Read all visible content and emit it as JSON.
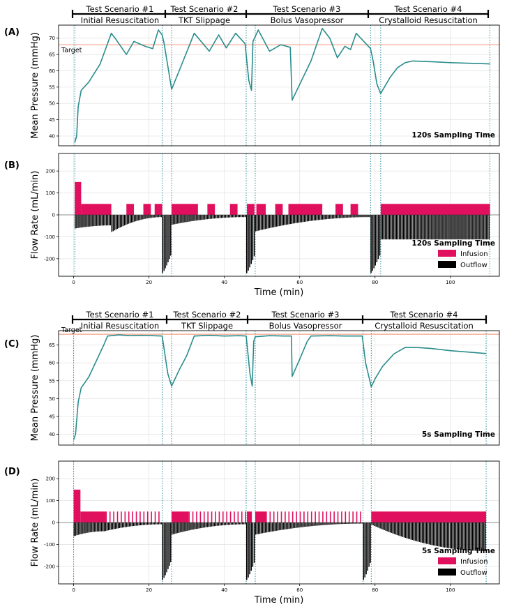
{
  "colors": {
    "pressure": "#2a8c8c",
    "target": "#f4a08a",
    "infusion": "#e0105e",
    "outflow": "#000000",
    "vline": "#2a8c9c",
    "grid": "#e4e4e4"
  },
  "top_figure": {
    "scenarios": [
      {
        "title": "Test Scenario #1",
        "subtitle": "Initial Resuscitation"
      },
      {
        "title": "Test Scenario #2",
        "subtitle": "TKT Slippage"
      },
      {
        "title": "Test Scenario #3",
        "subtitle": "Bolus Vasopressor"
      },
      {
        "title": "Test Scenario #4",
        "subtitle": "Crystalloid Resuscitation"
      }
    ]
  },
  "bottom_figure": {
    "scenarios": [
      {
        "title": "Test Scenario #1",
        "subtitle": "Initial Resuscitation"
      },
      {
        "title": "Test Scenario #2",
        "subtitle": "TKT Slippage"
      },
      {
        "title": "Test Scenario #3",
        "subtitle": "Bolus Vasopressor"
      },
      {
        "title": "Test Scenario #4",
        "subtitle": "Crystalloid Resuscitation"
      }
    ]
  },
  "chart_data": [
    {
      "panel": "(A)",
      "type": "line",
      "ylabel": "Mean Pressure (mmHg)",
      "annotation": "120s Sampling Time",
      "target_label": "Target",
      "target_value": 68,
      "xlim": [
        -4,
        113
      ],
      "ylim": [
        37,
        74
      ],
      "y_ticks": [
        40,
        45,
        50,
        55,
        60,
        65,
        70
      ],
      "event_lines_x": [
        0.3,
        23.5,
        26,
        45.8,
        48.2,
        78.8,
        81.5,
        110.5
      ],
      "series": [
        {
          "points": [
            [
              0.3,
              38
            ],
            [
              0.8,
              40
            ],
            [
              1.2,
              49
            ],
            [
              2,
              54
            ],
            [
              4,
              56.5
            ],
            [
              7,
              62
            ],
            [
              10,
              71.5
            ],
            [
              11,
              70
            ],
            [
              14,
              65
            ],
            [
              16,
              69
            ],
            [
              19,
              67.5
            ],
            [
              21,
              66.8
            ],
            [
              22.5,
              72.5
            ],
            [
              23.5,
              71
            ],
            [
              24,
              68.5
            ],
            [
              26,
              54.3
            ],
            [
              28,
              60
            ],
            [
              32,
              71.5
            ],
            [
              36,
              66
            ],
            [
              38.5,
              71
            ],
            [
              40.5,
              67
            ],
            [
              43,
              71.5
            ],
            [
              45.5,
              68.3
            ],
            [
              46.5,
              57
            ],
            [
              47.2,
              54
            ],
            [
              47.6,
              69
            ],
            [
              49,
              72.5
            ],
            [
              52,
              66
            ],
            [
              55,
              68
            ],
            [
              57.5,
              67.2
            ],
            [
              58,
              51
            ],
            [
              63,
              63
            ],
            [
              66,
              73
            ],
            [
              68,
              70
            ],
            [
              70,
              64
            ],
            [
              72,
              67.5
            ],
            [
              73.5,
              66.5
            ],
            [
              75,
              71.5
            ],
            [
              78.8,
              66.8
            ],
            [
              79.5,
              63
            ],
            [
              80.5,
              56
            ],
            [
              81.5,
              53
            ],
            [
              82,
              54
            ],
            [
              84,
              58
            ],
            [
              86,
              61
            ],
            [
              88,
              62.5
            ],
            [
              90,
              63
            ],
            [
              95,
              62.8
            ],
            [
              100,
              62.5
            ],
            [
              105,
              62.3
            ],
            [
              110.5,
              62.1
            ]
          ]
        }
      ]
    },
    {
      "panel": "(B)",
      "type": "bar",
      "xlabel": "Time (min)",
      "ylabel": "Flow Rate (mL/min)",
      "annotation": "120s Sampling Time",
      "xlim": [
        -4,
        113
      ],
      "ylim": [
        -280,
        280
      ],
      "x_ticks": [
        0,
        20,
        40,
        60,
        80,
        100
      ],
      "y_ticks": [
        -200,
        -100,
        0,
        100,
        200
      ],
      "event_lines_x": [
        0.3,
        23.5,
        26,
        45.8,
        48.2,
        78.8,
        81.5,
        110.5
      ],
      "legend": [
        "Infusion",
        "Outflow"
      ],
      "infusion_segments": [
        [
          0.3,
          2,
          150
        ],
        [
          2,
          10,
          50
        ],
        [
          14,
          16,
          50
        ],
        [
          18.5,
          20.5,
          50
        ],
        [
          21.5,
          23.5,
          50
        ],
        [
          26,
          33,
          50
        ],
        [
          35.5,
          37.5,
          50
        ],
        [
          41.5,
          43.5,
          50
        ],
        [
          46,
          48,
          50
        ],
        [
          48.5,
          51,
          50
        ],
        [
          53.5,
          55.5,
          50
        ],
        [
          57,
          66,
          50
        ],
        [
          69.5,
          71.5,
          50
        ],
        [
          73.5,
          75.5,
          50
        ],
        [
          81.5,
          110.5,
          50
        ]
      ],
      "outflow_curves": [
        [
          0.3,
          10,
          -62,
          -48
        ],
        [
          10,
          23.5,
          -78,
          -10
        ],
        [
          23.5,
          26,
          -265,
          -170
        ],
        [
          26,
          45.8,
          -45,
          -10
        ],
        [
          45.8,
          48.2,
          -265,
          -170
        ],
        [
          48.2,
          78.8,
          -75,
          -10
        ],
        [
          78.8,
          81.5,
          -265,
          -170
        ],
        [
          81.5,
          110.5,
          -112,
          -112
        ]
      ]
    },
    {
      "panel": "(C)",
      "type": "line",
      "ylabel": "Mean Pressure (mmHg)",
      "annotation": "5s Sampling Time",
      "target_label": "Target",
      "target_value": 68,
      "xlim": [
        -4,
        113
      ],
      "ylim": [
        37,
        69
      ],
      "y_ticks": [
        40,
        45,
        50,
        55,
        60,
        65
      ],
      "event_lines_x": [
        0,
        23.5,
        26,
        45.8,
        48.2,
        76.8,
        79,
        109.5
      ],
      "series": [
        {
          "points": [
            [
              0,
              38.5
            ],
            [
              0.5,
              40
            ],
            [
              1.2,
              49
            ],
            [
              2,
              53
            ],
            [
              4,
              56
            ],
            [
              6,
              60.5
            ],
            [
              8,
              65
            ],
            [
              9,
              67.5
            ],
            [
              10,
              67.6
            ],
            [
              12,
              67.8
            ],
            [
              15,
              67.6
            ],
            [
              18,
              67.7
            ],
            [
              21,
              67.6
            ],
            [
              23.5,
              67.5
            ],
            [
              24,
              64
            ],
            [
              25,
              57
            ],
            [
              26,
              53.5
            ],
            [
              28,
              58
            ],
            [
              30,
              62
            ],
            [
              32,
              67.5
            ],
            [
              36,
              67.7
            ],
            [
              40,
              67.5
            ],
            [
              44,
              67.6
            ],
            [
              45.8,
              67.5
            ],
            [
              46.8,
              57
            ],
            [
              47.4,
              53.5
            ],
            [
              47.8,
              66
            ],
            [
              48.2,
              67.3
            ],
            [
              52,
              67.6
            ],
            [
              56,
              67.5
            ],
            [
              57.8,
              67.5
            ],
            [
              58,
              56.2
            ],
            [
              60,
              61
            ],
            [
              62,
              66
            ],
            [
              63,
              67.5
            ],
            [
              68,
              67.6
            ],
            [
              72,
              67.5
            ],
            [
              76.6,
              67.5
            ],
            [
              77.5,
              60
            ],
            [
              79,
              53.3
            ],
            [
              80,
              55.5
            ],
            [
              82,
              59
            ],
            [
              85,
              62.5
            ],
            [
              88,
              64.3
            ],
            [
              91,
              64.3
            ],
            [
              95,
              64
            ],
            [
              100,
              63.4
            ],
            [
              105,
              63
            ],
            [
              109.5,
              62.6
            ]
          ]
        }
      ]
    },
    {
      "panel": "(D)",
      "type": "bar",
      "xlabel": "Time (min)",
      "ylabel": "Flow Rate (mL/min)",
      "annotation": "5s Sampling Time",
      "xlim": [
        -4,
        113
      ],
      "ylim": [
        -280,
        280
      ],
      "x_ticks": [
        0,
        20,
        40,
        60,
        80,
        100
      ],
      "y_ticks": [
        -200,
        -100,
        0,
        100,
        200
      ],
      "event_lines_x": [
        0,
        23.5,
        26,
        45.8,
        48.2,
        76.8,
        79,
        109.5
      ],
      "legend": [
        "Infusion",
        "Outflow"
      ],
      "infusion_segments": [
        [
          0,
          1.8,
          150
        ],
        [
          1.8,
          8.5,
          50
        ],
        [
          26,
          30.5,
          50
        ],
        [
          46,
          47.3,
          50
        ],
        [
          48.2,
          51,
          50
        ],
        [
          79,
          109.5,
          50
        ]
      ],
      "infusion_spikes": [
        [
          8.5,
          23.5
        ],
        [
          30.5,
          45.8
        ],
        [
          51,
          76.8
        ]
      ],
      "outflow_curves": [
        [
          0,
          8,
          -62,
          -40
        ],
        [
          8,
          23.5,
          -40,
          -8
        ],
        [
          23.5,
          26,
          -262,
          -165
        ],
        [
          26,
          45.8,
          -55,
          -8
        ],
        [
          45.8,
          48.2,
          -262,
          -165
        ],
        [
          48.2,
          76.8,
          -55,
          -5
        ],
        [
          76.8,
          79,
          -262,
          -165
        ],
        [
          79,
          109.5,
          -10,
          -130
        ]
      ]
    }
  ]
}
